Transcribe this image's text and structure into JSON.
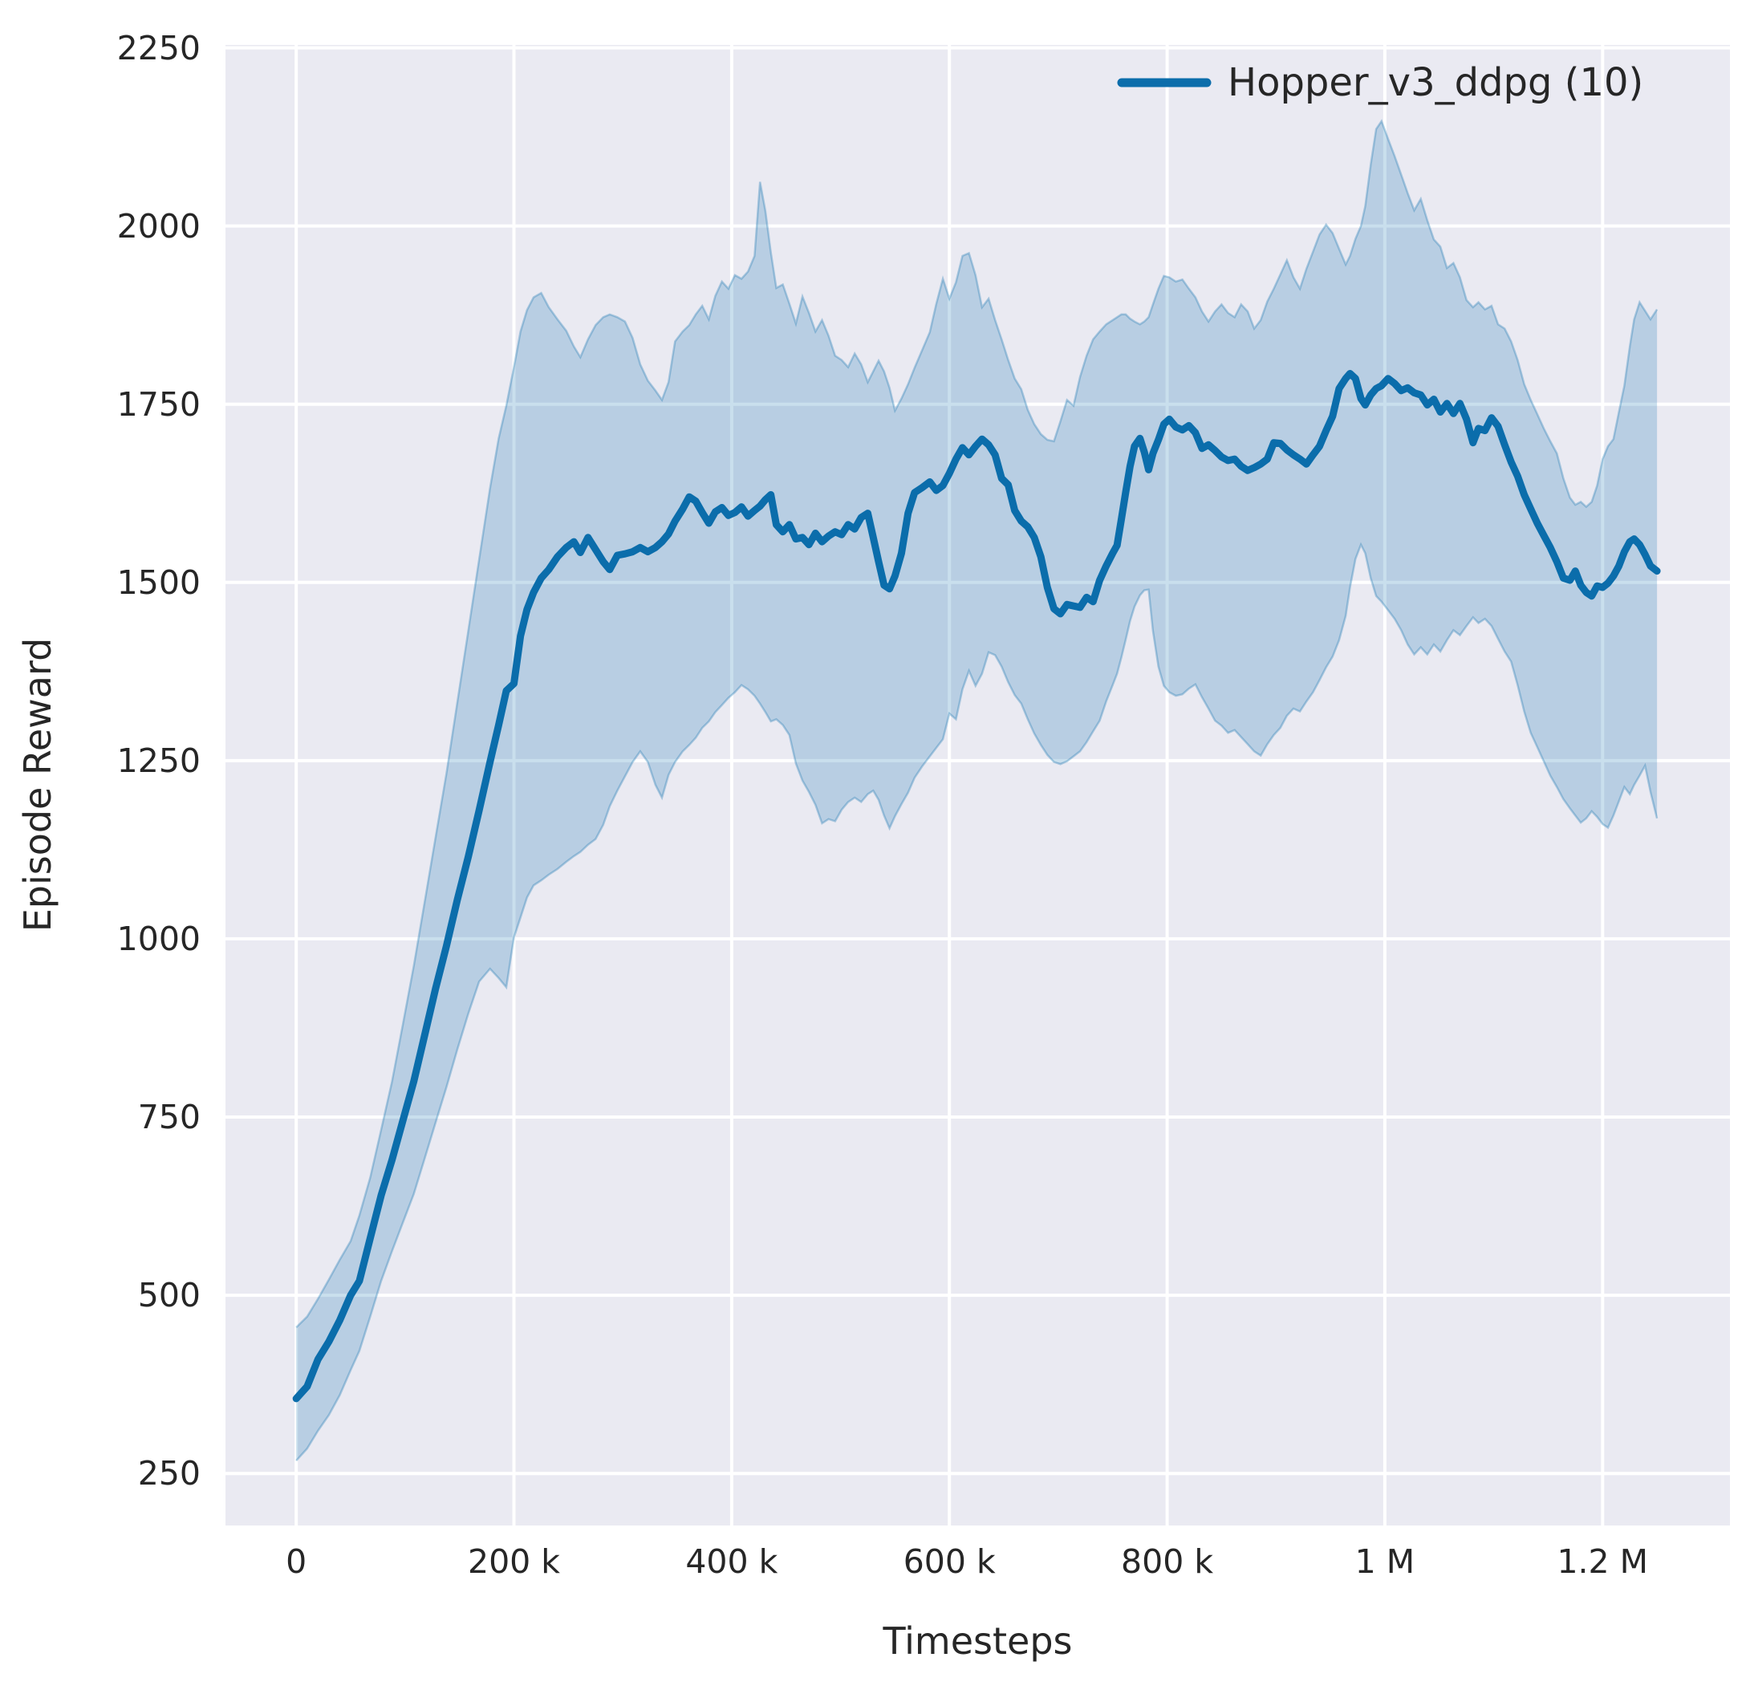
{
  "axes": {
    "xlabel": "Timesteps",
    "ylabel": "Episode Reward"
  },
  "legend": {
    "label": "Hopper_v3_ddpg (10)"
  },
  "colors": {
    "figure_background": "#ffffff",
    "plot_background": "#eaeaf2",
    "gridline": "#ffffff",
    "line": "#0b6dab",
    "band_fill_alpha": 0.22,
    "band_edge_alpha": 0.3,
    "text": "#262626"
  },
  "chart_data": {
    "type": "line",
    "title": "",
    "xlabel": "Timesteps",
    "ylabel": "Episode Reward",
    "x_unit": "thousands of timesteps",
    "grid": true,
    "legend_position": "upper right",
    "xlim": [
      -65,
      1317
    ],
    "ylim": [
      177,
      2254
    ],
    "xticks": {
      "values": [
        0,
        200,
        400,
        600,
        800,
        1000,
        1200
      ],
      "labels": [
        "0",
        "200 k",
        "400 k",
        "600 k",
        "800 k",
        "1 M",
        "1.2 M"
      ]
    },
    "yticks": {
      "values": [
        250,
        500,
        750,
        1000,
        1250,
        1500,
        1750,
        2000,
        2250
      ],
      "labels": [
        "250",
        "500",
        "750",
        "1000",
        "1250",
        "1500",
        "1750",
        "2000",
        "2250"
      ]
    },
    "series": [
      {
        "name": "Hopper_v3_ddpg (10)",
        "color": "#0b6dab",
        "x": [
          0,
          10,
          20,
          30,
          40,
          50,
          58,
          68,
          78,
          88,
          98,
          108,
          118,
          128,
          138,
          148,
          158,
          168,
          178,
          186,
          193,
          200,
          206,
          212,
          218,
          225,
          232,
          240,
          248,
          255,
          261,
          268,
          275,
          282,
          288,
          295,
          302,
          309,
          316,
          323,
          330,
          336,
          342,
          348,
          355,
          361,
          367,
          373,
          379,
          385,
          391,
          397,
          403,
          409,
          415,
          421,
          426,
          431,
          436,
          441,
          447,
          453,
          459,
          465,
          471,
          477,
          483,
          489,
          495,
          501,
          507,
          513,
          519,
          525,
          530,
          535,
          540,
          545,
          550,
          556,
          562,
          568,
          575,
          582,
          588,
          594,
          600,
          606,
          612,
          618,
          624,
          630,
          636,
          642,
          648,
          654,
          660,
          666,
          672,
          678,
          684,
          690,
          696,
          702,
          708,
          714,
          720,
          726,
          732,
          738,
          744,
          750,
          754,
          758,
          762,
          766,
          770,
          775,
          779,
          783,
          787,
          792,
          797,
          802,
          808,
          814,
          820,
          826,
          832,
          838,
          844,
          850,
          856,
          862,
          868,
          874,
          880,
          886,
          892,
          898,
          904,
          910,
          916,
          922,
          928,
          934,
          940,
          946,
          952,
          958,
          964,
          968,
          973,
          978,
          982,
          987,
          992,
          997,
          1003,
          1009,
          1015,
          1021,
          1027,
          1033,
          1039,
          1045,
          1051,
          1057,
          1063,
          1069,
          1075,
          1081,
          1086,
          1092,
          1098,
          1104,
          1110,
          1116,
          1122,
          1128,
          1134,
          1140,
          1146,
          1152,
          1158,
          1164,
          1170,
          1175,
          1180,
          1185,
          1190,
          1195,
          1200,
          1205,
          1210,
          1215,
          1220,
          1225,
          1229,
          1234,
          1239,
          1244,
          1250
        ],
        "mean": [
          355,
          372,
          410,
          435,
          465,
          500,
          520,
          580,
          640,
          690,
          745,
          800,
          865,
          930,
          990,
          1055,
          1115,
          1180,
          1248,
          1300,
          1348,
          1358,
          1425,
          1462,
          1486,
          1506,
          1518,
          1536,
          1549,
          1557,
          1542,
          1563,
          1546,
          1529,
          1518,
          1538,
          1540,
          1543,
          1549,
          1543,
          1549,
          1557,
          1568,
          1586,
          1603,
          1620,
          1614,
          1598,
          1583,
          1599,
          1605,
          1594,
          1598,
          1606,
          1593,
          1601,
          1607,
          1616,
          1623,
          1581,
          1571,
          1581,
          1561,
          1563,
          1553,
          1569,
          1557,
          1565,
          1571,
          1567,
          1581,
          1575,
          1591,
          1597,
          1563,
          1529,
          1496,
          1491,
          1509,
          1541,
          1597,
          1626,
          1633,
          1641,
          1629,
          1636,
          1653,
          1673,
          1689,
          1679,
          1691,
          1701,
          1693,
          1679,
          1646,
          1637,
          1601,
          1586,
          1578,
          1563,
          1536,
          1493,
          1463,
          1456,
          1469,
          1467,
          1465,
          1479,
          1473,
          1503,
          1523,
          1541,
          1552,
          1589,
          1627,
          1663,
          1691,
          1702,
          1683,
          1658,
          1681,
          1700,
          1722,
          1729,
          1718,
          1714,
          1720,
          1710,
          1688,
          1693,
          1685,
          1676,
          1671,
          1673,
          1663,
          1657,
          1661,
          1666,
          1673,
          1696,
          1695,
          1686,
          1679,
          1673,
          1666,
          1679,
          1691,
          1713,
          1733,
          1772,
          1786,
          1793,
          1786,
          1758,
          1749,
          1763,
          1772,
          1776,
          1786,
          1779,
          1769,
          1773,
          1766,
          1763,
          1749,
          1757,
          1739,
          1751,
          1737,
          1751,
          1729,
          1696,
          1716,
          1713,
          1731,
          1719,
          1693,
          1669,
          1649,
          1623,
          1603,
          1583,
          1566,
          1549,
          1529,
          1506,
          1503,
          1516,
          1496,
          1486,
          1481,
          1495,
          1493,
          1499,
          1509,
          1523,
          1543,
          1557,
          1561,
          1553,
          1539,
          1523,
          1516
        ],
        "band_lower": [
          268,
          285,
          310,
          332,
          360,
          395,
          422,
          470,
          520,
          562,
          602,
          642,
          692,
          742,
          792,
          845,
          895,
          940,
          958,
          945,
          932,
          1002,
          1030,
          1058,
          1075,
          1082,
          1090,
          1098,
          1108,
          1116,
          1122,
          1132,
          1140,
          1160,
          1186,
          1208,
          1228,
          1248,
          1263,
          1248,
          1216,
          1198,
          1230,
          1248,
          1263,
          1272,
          1282,
          1296,
          1305,
          1318,
          1328,
          1338,
          1346,
          1356,
          1350,
          1341,
          1330,
          1318,
          1305,
          1308,
          1300,
          1286,
          1246,
          1222,
          1206,
          1188,
          1162,
          1168,
          1165,
          1181,
          1192,
          1198,
          1192,
          1203,
          1208,
          1195,
          1173,
          1155,
          1172,
          1189,
          1205,
          1226,
          1242,
          1256,
          1268,
          1280,
          1316,
          1308,
          1350,
          1376,
          1355,
          1372,
          1402,
          1398,
          1382,
          1360,
          1342,
          1330,
          1308,
          1288,
          1272,
          1258,
          1248,
          1245,
          1249,
          1256,
          1263,
          1276,
          1291,
          1306,
          1333,
          1356,
          1372,
          1395,
          1420,
          1446,
          1466,
          1482,
          1489,
          1490,
          1432,
          1382,
          1355,
          1346,
          1341,
          1343,
          1351,
          1357,
          1339,
          1323,
          1306,
          1299,
          1289,
          1293,
          1283,
          1273,
          1263,
          1257,
          1273,
          1286,
          1296,
          1313,
          1323,
          1319,
          1333,
          1346,
          1363,
          1381,
          1396,
          1419,
          1453,
          1493,
          1533,
          1553,
          1541,
          1506,
          1481,
          1473,
          1461,
          1449,
          1433,
          1413,
          1399,
          1409,
          1399,
          1413,
          1403,
          1419,
          1433,
          1426,
          1439,
          1451,
          1443,
          1449,
          1439,
          1421,
          1403,
          1389,
          1356,
          1319,
          1289,
          1269,
          1249,
          1229,
          1213,
          1196,
          1183,
          1173,
          1163,
          1169,
          1179,
          1171,
          1161,
          1156,
          1173,
          1193,
          1213,
          1203,
          1216,
          1229,
          1243,
          1206,
          1169
        ],
        "band_upper": [
          455,
          470,
          495,
          522,
          550,
          576,
          612,
          665,
          732,
          800,
          880,
          962,
          1052,
          1142,
          1232,
          1332,
          1432,
          1532,
          1632,
          1702,
          1748,
          1802,
          1852,
          1882,
          1900,
          1906,
          1886,
          1869,
          1853,
          1831,
          1816,
          1841,
          1861,
          1872,
          1876,
          1872,
          1866,
          1843,
          1806,
          1783,
          1769,
          1756,
          1781,
          1838,
          1852,
          1861,
          1876,
          1888,
          1869,
          1902,
          1922,
          1912,
          1931,
          1926,
          1936,
          1958,
          2062,
          2021,
          1963,
          1913,
          1918,
          1891,
          1863,
          1901,
          1878,
          1852,
          1868,
          1846,
          1818,
          1812,
          1802,
          1821,
          1806,
          1781,
          1796,
          1811,
          1796,
          1773,
          1741,
          1758,
          1778,
          1801,
          1826,
          1851,
          1891,
          1926,
          1898,
          1921,
          1958,
          1962,
          1931,
          1886,
          1898,
          1868,
          1841,
          1812,
          1786,
          1771,
          1742,
          1722,
          1708,
          1700,
          1698,
          1726,
          1756,
          1748,
          1788,
          1818,
          1841,
          1852,
          1862,
          1868,
          1872,
          1876,
          1876,
          1870,
          1866,
          1862,
          1866,
          1872,
          1890,
          1912,
          1930,
          1928,
          1922,
          1925,
          1912,
          1900,
          1880,
          1866,
          1880,
          1890,
          1878,
          1872,
          1890,
          1880,
          1856,
          1868,
          1894,
          1912,
          1932,
          1952,
          1928,
          1912,
          1940,
          1964,
          1988,
          2002,
          1990,
          1968,
          1946,
          1958,
          1982,
          2000,
          2028,
          2086,
          2136,
          2147,
          2122,
          2098,
          2072,
          2046,
          2022,
          2038,
          2008,
          1981,
          1971,
          1941,
          1948,
          1928,
          1896,
          1886,
          1893,
          1883,
          1888,
          1862,
          1856,
          1838,
          1812,
          1778,
          1756,
          1736,
          1716,
          1698,
          1681,
          1646,
          1619,
          1609,
          1613,
          1606,
          1613,
          1636,
          1673,
          1691,
          1701,
          1739,
          1776,
          1831,
          1869,
          1893,
          1881,
          1869,
          1883
        ]
      }
    ]
  }
}
